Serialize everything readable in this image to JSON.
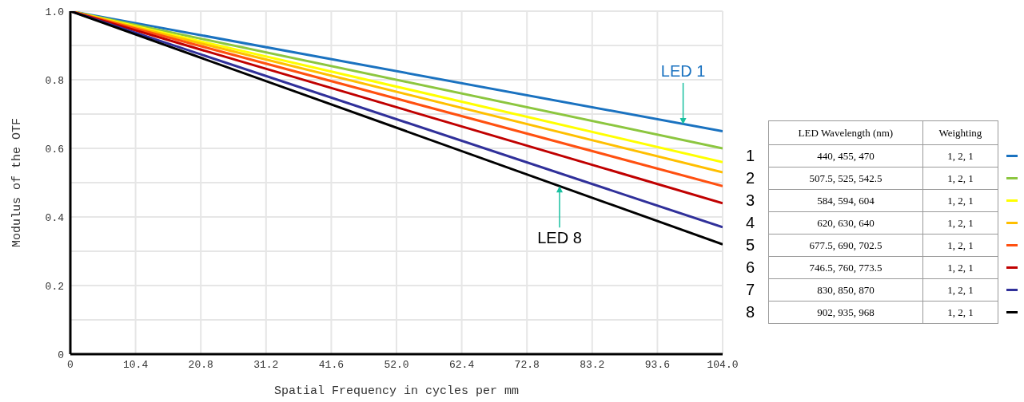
{
  "chart_data": {
    "type": "line",
    "xlabel": "Spatial Frequency in cycles per mm",
    "ylabel": "Modulus of the OTF",
    "x": [
      0,
      104
    ],
    "xlim": [
      0,
      104
    ],
    "xticks": [
      0,
      10.4,
      20.8,
      31.2,
      41.6,
      {
        "value": 52,
        "label": "52.0"
      },
      62.4,
      72.8,
      83.2,
      93.6,
      {
        "value": 104,
        "label": "104.0"
      }
    ],
    "ylim": [
      0,
      1
    ],
    "yticks": [
      0,
      {
        "value": 0.1,
        "label": null
      },
      0.2,
      {
        "value": 0.3,
        "label": null
      },
      0.4,
      {
        "value": 0.5,
        "label": null
      },
      0.6,
      {
        "value": 0.7,
        "label": null
      },
      0.8,
      {
        "value": 0.9,
        "label": null
      },
      {
        "value": 1,
        "label": "1.0"
      }
    ],
    "grid": true,
    "legend": "right",
    "marker": "none",
    "line_style": "solid",
    "series": [
      {
        "name": "1",
        "color": "#1a72c0",
        "values": [
          1,
          0.65
        ]
      },
      {
        "name": "2",
        "color": "#8cc63f",
        "values": [
          1,
          0.6
        ]
      },
      {
        "name": "3",
        "color": "#ffff00",
        "values": [
          1,
          0.56
        ]
      },
      {
        "name": "4",
        "color": "#ffbf00",
        "values": [
          1,
          0.53
        ]
      },
      {
        "name": "5",
        "color": "#ff5010",
        "values": [
          1,
          0.49
        ]
      },
      {
        "name": "6",
        "color": "#c00000",
        "values": [
          1,
          0.44
        ]
      },
      {
        "name": "7",
        "color": "#30309a",
        "values": [
          1,
          0.37
        ]
      },
      {
        "name": "8",
        "color": "#000000",
        "values": [
          1,
          0.32
        ]
      }
    ],
    "annotations": [
      {
        "text": "LED 1",
        "x": 97.7,
        "y": 0.67
      },
      {
        "text": "LED 8",
        "x": 78,
        "y": 0.49
      },
      "LED Wavelength (nm)",
      "Weighting",
      "440, 455, 470",
      "1, 2, 1",
      "507.5, 525, 542.5",
      "1, 2, 1",
      "584, 594, 604",
      "1, 2, 1",
      "620, 630, 640",
      "1, 2, 1",
      "677.5, 690, 702.5",
      "1, 2, 1",
      "746.5, 760, 773.5",
      "1, 2, 1",
      "830, 850, 870",
      "1, 2, 1",
      "902, 935, 968",
      "1, 2, 1"
    ]
  }
}
